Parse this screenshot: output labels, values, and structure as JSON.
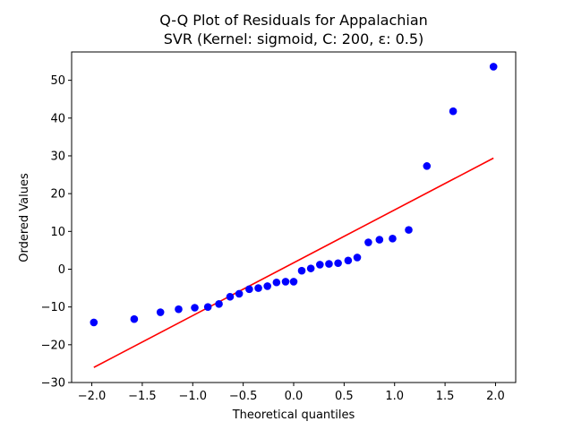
{
  "chart_data": {
    "type": "scatter",
    "title_lines": [
      "Q-Q Plot of Residuals for Appalachian",
      "SVR (Kernel: sigmoid, C: 200, ε: 0.5)"
    ],
    "xlabel": "Theoretical quantiles",
    "ylabel": "Ordered Values",
    "xlim": [
      -2.2,
      2.2
    ],
    "ylim": [
      -30,
      57.5
    ],
    "xticks": [
      -2.0,
      -1.5,
      -1.0,
      -0.5,
      0.0,
      0.5,
      1.0,
      1.5,
      2.0
    ],
    "xtick_labels": [
      "−2.0",
      "−1.5",
      "−1.0",
      "−0.5",
      "0.0",
      "0.5",
      "1.0",
      "1.5",
      "2.0"
    ],
    "yticks": [
      -30,
      -20,
      -10,
      0,
      10,
      20,
      30,
      40,
      50
    ],
    "ytick_labels": [
      "−30",
      "−20",
      "−10",
      "0",
      "10",
      "20",
      "30",
      "40",
      "50"
    ],
    "grid": false,
    "points": {
      "color": "#0000ff",
      "x": [
        -1.98,
        -1.58,
        -1.32,
        -1.14,
        -0.98,
        -0.85,
        -0.74,
        -0.63,
        -0.54,
        -0.44,
        -0.35,
        -0.26,
        -0.17,
        -0.08,
        0.0,
        0.08,
        0.17,
        0.26,
        0.35,
        0.44,
        0.54,
        0.63,
        0.74,
        0.85,
        0.98,
        1.14,
        1.32,
        1.58,
        1.98
      ],
      "y": [
        -14.1,
        -13.2,
        -11.4,
        -10.6,
        -10.2,
        -10.0,
        -9.2,
        -7.3,
        -6.5,
        -5.3,
        -5.0,
        -4.5,
        -3.5,
        -3.3,
        -3.3,
        -0.4,
        0.2,
        1.2,
        1.4,
        1.6,
        2.3,
        3.1,
        7.1,
        7.8,
        8.1,
        10.4,
        27.3,
        41.8,
        53.6
      ]
    },
    "fit_line": {
      "color": "#ff0000",
      "x": [
        -1.98,
        1.98
      ],
      "y": [
        -26.0,
        29.4
      ]
    }
  }
}
